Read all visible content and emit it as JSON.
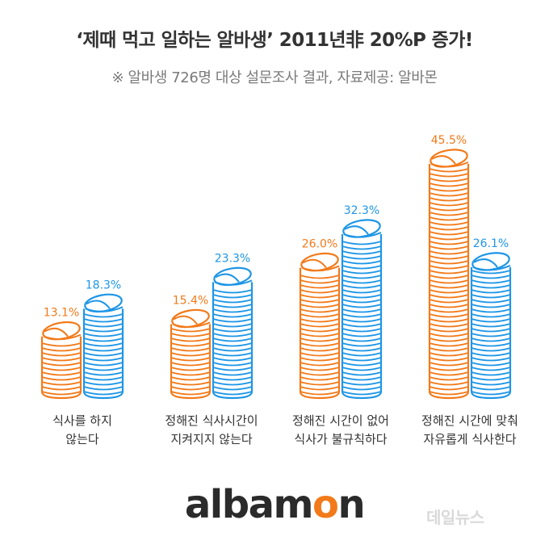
{
  "title": "‘제때 먹고 일하는 알바생’ 2011년非 20%P 증가!",
  "subtitle": "※ 알바생 726명 대상 설문조사 결과,  자료제공: 알바몬",
  "logo": {
    "text_part1": "albam",
    "text_accent": "o",
    "text_part2": "n",
    "brand_color": "#f27a1a"
  },
  "watermark": "데일뉴스",
  "colors": {
    "series_2011": "#f27a1a",
    "series_2014": "#1e96e6"
  },
  "chart_data": {
    "type": "bar",
    "categories": [
      [
        "식사를 하지",
        "않는다"
      ],
      [
        "정해진 식사시간이",
        "지켜지지 않는다"
      ],
      [
        "정해진 시간이 없어",
        "식사가 불규칙하다"
      ],
      [
        "정해진 시간에 맞춰",
        "자유롭게 식사한다"
      ]
    ],
    "series": [
      {
        "values": [
          13.1,
          15.4,
          26.0,
          45.5
        ],
        "value_labels": [
          "13.1%",
          "15.4%",
          "26.0%",
          "45.5%"
        ],
        "color": "#f27a1a"
      },
      {
        "values": [
          18.3,
          23.3,
          32.3,
          26.1
        ],
        "value_labels": [
          "18.3%",
          "23.3%",
          "32.3%",
          "26.1%"
        ],
        "color": "#1e96e6"
      }
    ],
    "ylim": [
      0,
      45.5
    ],
    "grid": false,
    "legend": "none"
  }
}
